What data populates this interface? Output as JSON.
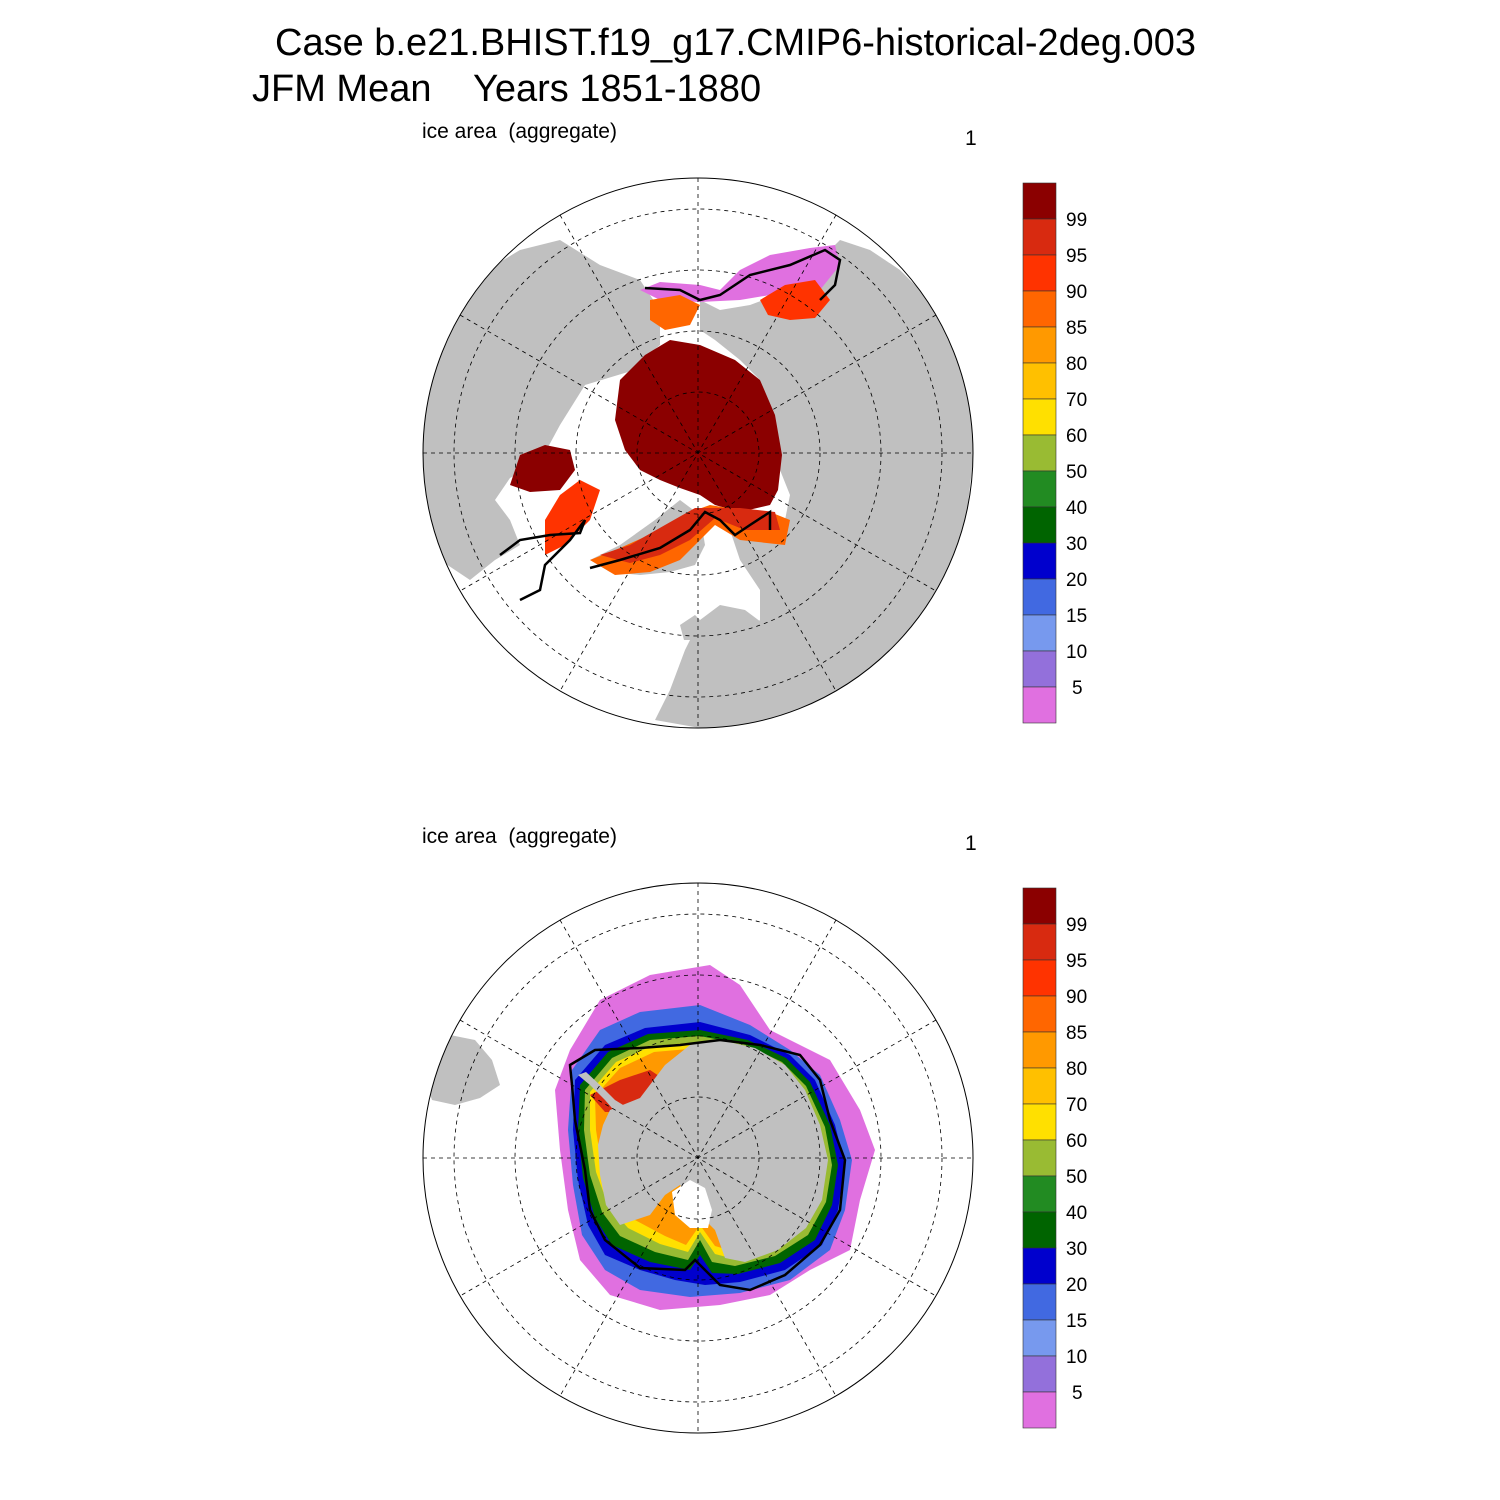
{
  "title": {
    "line1": "Case b.e21.BHIST.f19_g17.CMIP6-historical-2deg.003",
    "line2": "JFM Mean    Years 1851-1880"
  },
  "panels": [
    {
      "label": "ice area  (aggregate)",
      "number": "1",
      "hemisphere": "north"
    },
    {
      "label": "ice area  (aggregate)",
      "number": "1",
      "hemisphere": "south"
    }
  ],
  "colorbar": {
    "labels": [
      "99",
      "95",
      "90",
      "85",
      "80",
      "70",
      "60",
      "50",
      "40",
      "30",
      "20",
      "15",
      "10",
      "5"
    ],
    "colors": [
      "#8b0000",
      "#d82a10",
      "#ff3300",
      "#ff6600",
      "#ff9900",
      "#ffc000",
      "#ffe000",
      "#99bb33",
      "#228b22",
      "#006400",
      "#0000cd",
      "#4169e1",
      "#7799ee",
      "#9370db",
      "#e070e0"
    ]
  },
  "colors": {
    "land": "#c0c0c0",
    "ocean": "#ffffff",
    "climatology_contour": "#000000"
  }
}
